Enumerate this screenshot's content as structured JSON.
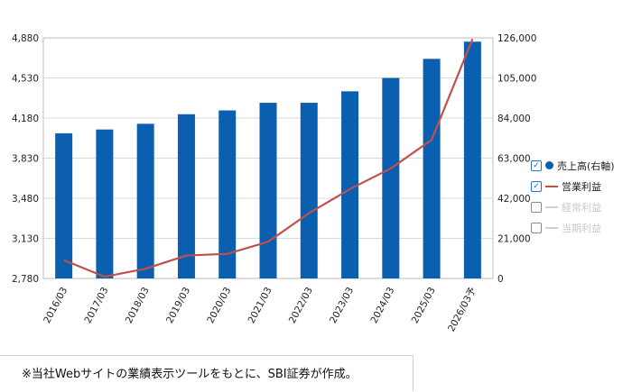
{
  "chart_data": {
    "type": "bar",
    "categories": [
      "2016/03",
      "2017/03",
      "2018/03",
      "2019/03",
      "2020/03",
      "2021/03",
      "2022/03",
      "2023/03",
      "2024/03",
      "2025/03",
      "2026/03予"
    ],
    "series": [
      {
        "name": "売上高(右軸)",
        "type": "bar",
        "axis": "right",
        "values": [
          76000,
          78000,
          81000,
          86000,
          88000,
          92000,
          92000,
          98000,
          105000,
          115000,
          124000
        ]
      },
      {
        "name": "営業利益",
        "type": "line",
        "axis": "left",
        "values": [
          2940,
          2795,
          2865,
          2980,
          2995,
          3100,
          3350,
          3560,
          3740,
          3990,
          4870
        ]
      }
    ],
    "left_axis": {
      "ticks": [
        "2,780",
        "3,130",
        "3,480",
        "3,830",
        "4,180",
        "4,530",
        "4,880"
      ],
      "ylim": [
        2780,
        4880
      ]
    },
    "right_axis": {
      "ticks": [
        "0",
        "21,000",
        "42,000",
        "63,000",
        "84,000",
        "105,000",
        "126,000"
      ],
      "ylim": [
        0,
        126000
      ]
    },
    "grid": true,
    "legend_position": "right",
    "colors": {
      "bar": "#0b5fb0",
      "line": "#c1504b",
      "grid": "#d9d9d9"
    }
  },
  "legend": {
    "items": [
      {
        "label": "売上高(右軸)",
        "checked": true
      },
      {
        "label": "営業利益",
        "checked": true
      },
      {
        "label": "経常利益",
        "checked": false
      },
      {
        "label": "当期利益",
        "checked": false
      }
    ]
  },
  "note": "※当社Webサイトの業績表示ツールをもとに、SBI証券が作成。"
}
